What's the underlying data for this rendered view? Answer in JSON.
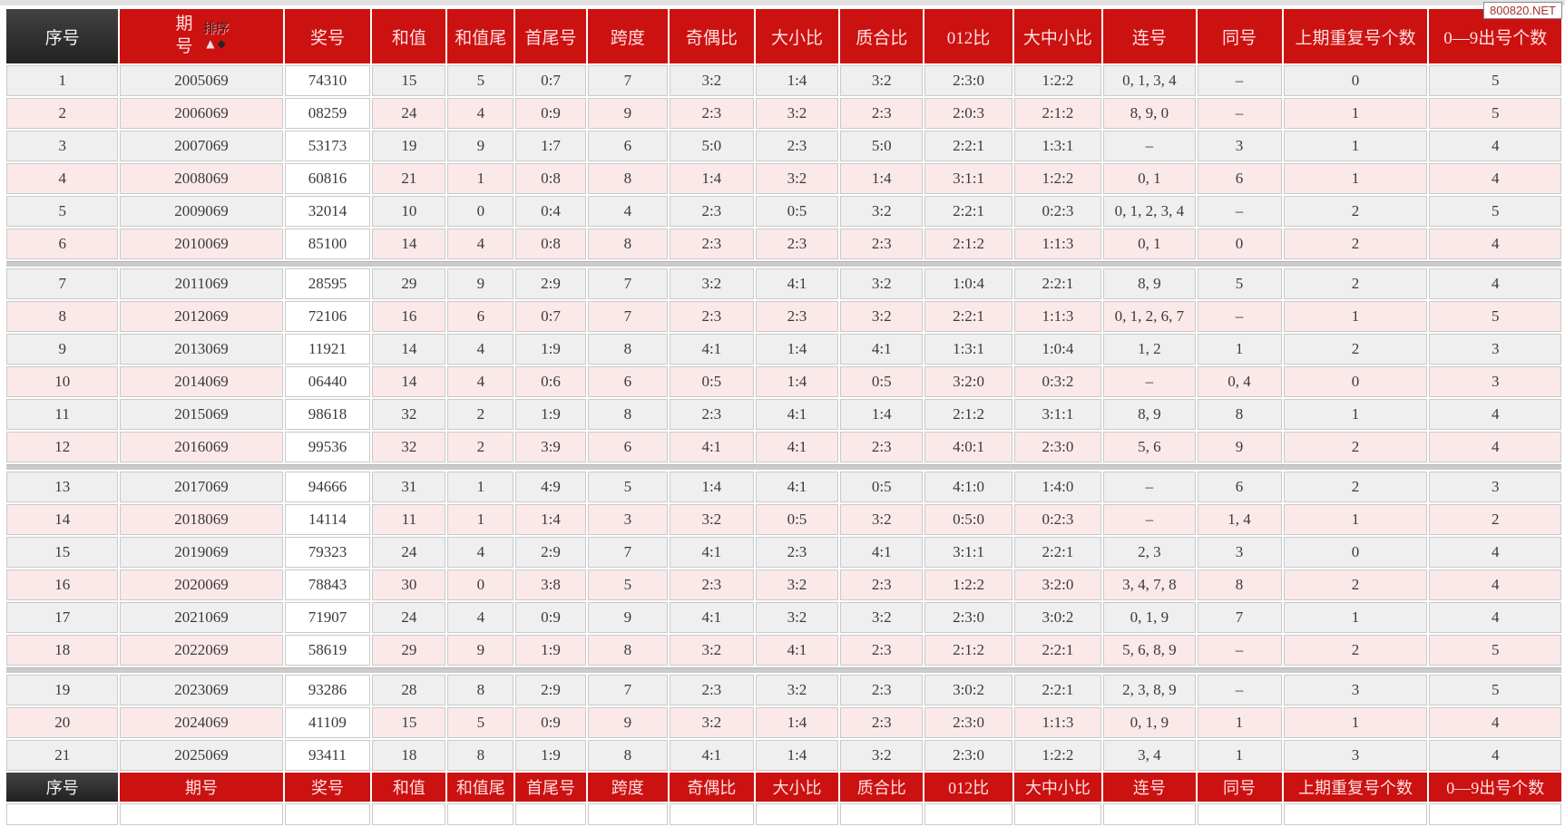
{
  "watermark": "800820.NET",
  "sort": {
    "label": "排序",
    "asc_icon": "▲",
    "desc_icon": "◆"
  },
  "columns": [
    {
      "key": "xuhao",
      "label": "序号"
    },
    {
      "key": "qihao",
      "label": "期号"
    },
    {
      "key": "jianghao",
      "label": "奖号"
    },
    {
      "key": "hezhi",
      "label": "和值"
    },
    {
      "key": "hezhiwei",
      "label": "和值尾"
    },
    {
      "key": "shouweihao",
      "label": "首尾号"
    },
    {
      "key": "kuadu",
      "label": "跨度"
    },
    {
      "key": "jioubi",
      "label": "奇偶比"
    },
    {
      "key": "daxiaobi",
      "label": "大小比"
    },
    {
      "key": "zhihebi",
      "label": "质合比"
    },
    {
      "key": "lingyaoerbi",
      "label": "012比"
    },
    {
      "key": "dazhongxiaobi",
      "label": "大中小比"
    },
    {
      "key": "lianhao",
      "label": "连号"
    },
    {
      "key": "tonghao",
      "label": "同号"
    },
    {
      "key": "shangqichongfu",
      "label": "上期重复号个数"
    },
    {
      "key": "chuhaogeshu",
      "label": "0—9出号个数"
    }
  ],
  "rows": [
    [
      "1",
      "2005069",
      "74310",
      "15",
      "5",
      "0:7",
      "7",
      "3:2",
      "1:4",
      "3:2",
      "2:3:0",
      "1:2:2",
      "0, 1, 3, 4",
      "–",
      "0",
      "5"
    ],
    [
      "2",
      "2006069",
      "08259",
      "24",
      "4",
      "0:9",
      "9",
      "2:3",
      "3:2",
      "2:3",
      "2:0:3",
      "2:1:2",
      "8, 9, 0",
      "–",
      "1",
      "5"
    ],
    [
      "3",
      "2007069",
      "53173",
      "19",
      "9",
      "1:7",
      "6",
      "5:0",
      "2:3",
      "5:0",
      "2:2:1",
      "1:3:1",
      "–",
      "3",
      "1",
      "4"
    ],
    [
      "4",
      "2008069",
      "60816",
      "21",
      "1",
      "0:8",
      "8",
      "1:4",
      "3:2",
      "1:4",
      "3:1:1",
      "1:2:2",
      "0, 1",
      "6",
      "1",
      "4"
    ],
    [
      "5",
      "2009069",
      "32014",
      "10",
      "0",
      "0:4",
      "4",
      "2:3",
      "0:5",
      "3:2",
      "2:2:1",
      "0:2:3",
      "0, 1, 2, 3, 4",
      "–",
      "2",
      "5"
    ],
    [
      "6",
      "2010069",
      "85100",
      "14",
      "4",
      "0:8",
      "8",
      "2:3",
      "2:3",
      "2:3",
      "2:1:2",
      "1:1:3",
      "0, 1",
      "0",
      "2",
      "4"
    ],
    [
      "7",
      "2011069",
      "28595",
      "29",
      "9",
      "2:9",
      "7",
      "3:2",
      "4:1",
      "3:2",
      "1:0:4",
      "2:2:1",
      "8, 9",
      "5",
      "2",
      "4"
    ],
    [
      "8",
      "2012069",
      "72106",
      "16",
      "6",
      "0:7",
      "7",
      "2:3",
      "2:3",
      "3:2",
      "2:2:1",
      "1:1:3",
      "0, 1, 2, 6, 7",
      "–",
      "1",
      "5"
    ],
    [
      "9",
      "2013069",
      "11921",
      "14",
      "4",
      "1:9",
      "8",
      "4:1",
      "1:4",
      "4:1",
      "1:3:1",
      "1:0:4",
      "1, 2",
      "1",
      "2",
      "3"
    ],
    [
      "10",
      "2014069",
      "06440",
      "14",
      "4",
      "0:6",
      "6",
      "0:5",
      "1:4",
      "0:5",
      "3:2:0",
      "0:3:2",
      "–",
      "0, 4",
      "0",
      "3"
    ],
    [
      "11",
      "2015069",
      "98618",
      "32",
      "2",
      "1:9",
      "8",
      "2:3",
      "4:1",
      "1:4",
      "2:1:2",
      "3:1:1",
      "8, 9",
      "8",
      "1",
      "4"
    ],
    [
      "12",
      "2016069",
      "99536",
      "32",
      "2",
      "3:9",
      "6",
      "4:1",
      "4:1",
      "2:3",
      "4:0:1",
      "2:3:0",
      "5, 6",
      "9",
      "2",
      "4"
    ],
    [
      "13",
      "2017069",
      "94666",
      "31",
      "1",
      "4:9",
      "5",
      "1:4",
      "4:1",
      "0:5",
      "4:1:0",
      "1:4:0",
      "–",
      "6",
      "2",
      "3"
    ],
    [
      "14",
      "2018069",
      "14114",
      "11",
      "1",
      "1:4",
      "3",
      "3:2",
      "0:5",
      "3:2",
      "0:5:0",
      "0:2:3",
      "–",
      "1, 4",
      "1",
      "2"
    ],
    [
      "15",
      "2019069",
      "79323",
      "24",
      "4",
      "2:9",
      "7",
      "4:1",
      "2:3",
      "4:1",
      "3:1:1",
      "2:2:1",
      "2, 3",
      "3",
      "0",
      "4"
    ],
    [
      "16",
      "2020069",
      "78843",
      "30",
      "0",
      "3:8",
      "5",
      "2:3",
      "3:2",
      "2:3",
      "1:2:2",
      "3:2:0",
      "3, 4, 7, 8",
      "8",
      "2",
      "4"
    ],
    [
      "17",
      "2021069",
      "71907",
      "24",
      "4",
      "0:9",
      "9",
      "4:1",
      "3:2",
      "3:2",
      "2:3:0",
      "3:0:2",
      "0, 1, 9",
      "7",
      "1",
      "4"
    ],
    [
      "18",
      "2022069",
      "58619",
      "29",
      "9",
      "1:9",
      "8",
      "3:2",
      "4:1",
      "2:3",
      "2:1:2",
      "2:2:1",
      "5, 6, 8, 9",
      "–",
      "2",
      "5"
    ],
    [
      "19",
      "2023069",
      "93286",
      "28",
      "8",
      "2:9",
      "7",
      "2:3",
      "3:2",
      "2:3",
      "3:0:2",
      "2:2:1",
      "2, 3, 8, 9",
      "–",
      "3",
      "5"
    ],
    [
      "20",
      "2024069",
      "41109",
      "15",
      "5",
      "0:9",
      "9",
      "3:2",
      "1:4",
      "2:3",
      "2:3:0",
      "1:1:3",
      "0, 1, 9",
      "1",
      "1",
      "4"
    ],
    [
      "21",
      "2025069",
      "93411",
      "18",
      "8",
      "1:9",
      "8",
      "4:1",
      "1:4",
      "3:2",
      "2:3:0",
      "1:2:2",
      "3, 4",
      "1",
      "3",
      "4"
    ]
  ]
}
